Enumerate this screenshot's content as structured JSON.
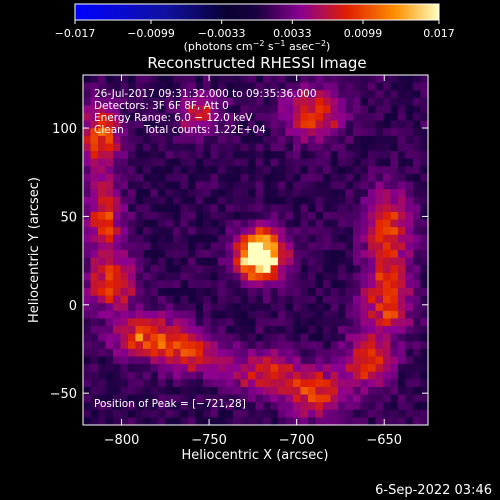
{
  "chart_data": {
    "type": "heatmap",
    "title": "Reconstructed RHESSI Image",
    "xlabel": "Heliocentric X (arcsec)",
    "ylabel": "Heliocentric Y (arcsec)",
    "xlim": [
      -822,
      -625
    ],
    "ylim": [
      -68,
      130
    ],
    "xticks": [
      -800,
      -750,
      -700,
      -650
    ],
    "yticks": [
      -50,
      0,
      50,
      100
    ],
    "xtick_labels": [
      "−800",
      "−750",
      "−700",
      "−650"
    ],
    "ytick_labels": [
      "−50",
      "0",
      "50",
      "100"
    ],
    "colorbar": {
      "min": -0.017,
      "max": 0.017,
      "tick_values": [
        -0.017,
        -0.0099,
        -0.0033,
        0.0033,
        0.0099,
        0.017
      ],
      "tick_labels": [
        "−0.017",
        "−0.0099",
        "−0.0033",
        "0.0033",
        "0.0099",
        "0.017"
      ],
      "unit_parts": [
        "(photons cm",
        "−2",
        " s",
        "−1",
        " asec",
        "−2",
        ")"
      ]
    },
    "info_lines": [
      "26-Jul-2017 09:31:32.000 to 09:35:36.000",
      "Detectors: 3F 6F 8F, Att 0",
      "Energy Range: 6.0 − 12.0 keV",
      "Clean      Total counts: 1.22E+04"
    ],
    "peak_label": "Position of Peak = [−721,28]",
    "peak": {
      "x": -721,
      "y": 28,
      "value": 0.017
    },
    "blobs": [
      {
        "x": -721,
        "y": 28,
        "sx": 9,
        "sy": 9,
        "amp": 0.022
      },
      {
        "x": -812,
        "y": 95,
        "sx": 8,
        "sy": 12,
        "amp": 0.0085
      },
      {
        "x": -810,
        "y": 50,
        "sx": 7,
        "sy": 14,
        "amp": 0.0085
      },
      {
        "x": -805,
        "y": 12,
        "sx": 9,
        "sy": 10,
        "amp": 0.0095
      },
      {
        "x": -785,
        "y": -18,
        "sx": 14,
        "sy": 8,
        "amp": 0.0095
      },
      {
        "x": -760,
        "y": -28,
        "sx": 12,
        "sy": 8,
        "amp": 0.008
      },
      {
        "x": -720,
        "y": -38,
        "sx": 14,
        "sy": 8,
        "amp": 0.0075
      },
      {
        "x": -690,
        "y": -50,
        "sx": 12,
        "sy": 9,
        "amp": 0.009
      },
      {
        "x": -660,
        "y": -32,
        "sx": 10,
        "sy": 10,
        "amp": 0.008
      },
      {
        "x": -648,
        "y": 5,
        "sx": 9,
        "sy": 14,
        "amp": 0.0095
      },
      {
        "x": -648,
        "y": 45,
        "sx": 9,
        "sy": 14,
        "amp": 0.009
      },
      {
        "x": -690,
        "y": 108,
        "sx": 12,
        "sy": 10,
        "amp": 0.008
      },
      {
        "x": -755,
        "y": 108,
        "sx": 9,
        "sy": 8,
        "amp": 0.006
      }
    ]
  },
  "footer": {
    "timestamp": "6-Sep-2022 03:46"
  },
  "colors": {
    "background": "#000000",
    "text": "#ffffff"
  }
}
